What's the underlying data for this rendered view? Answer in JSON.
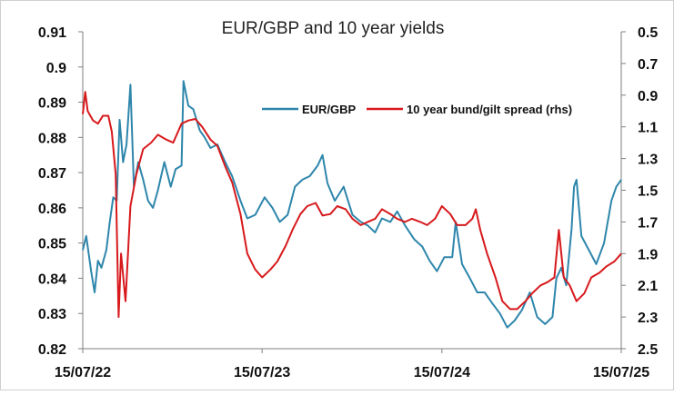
{
  "chart_data": {
    "type": "line",
    "title": "EUR/GBP and 10 year yields",
    "x_ticks": [
      "15/07/22",
      "15/07/23",
      "15/07/24",
      "15/07/25"
    ],
    "x_range": [
      "15/07/22",
      "15/07/25"
    ],
    "y_left": {
      "range": [
        0.82,
        0.91
      ],
      "ticks": [
        "0.91",
        "0.9",
        "0.89",
        "0.88",
        "0.87",
        "0.86",
        "0.85",
        "0.84",
        "0.83",
        "0.82"
      ]
    },
    "y_right": {
      "range": [
        0.5,
        2.5
      ],
      "inverted": true,
      "ticks": [
        "0.5",
        "0.7",
        "0.9",
        "1.1",
        "1.3",
        "1.5",
        "1.7",
        "1.9",
        "2.1",
        "2.3",
        "2.5"
      ]
    },
    "legend_placement": "top-center",
    "grid": false,
    "series": [
      {
        "name": "EUR/GBP",
        "axis": "left",
        "color": "#2E86AB",
        "points": [
          [
            "2022-07-15",
            0.848
          ],
          [
            "2022-07-22",
            0.852
          ],
          [
            "2022-08-01",
            0.842
          ],
          [
            "2022-08-08",
            0.836
          ],
          [
            "2022-08-15",
            0.845
          ],
          [
            "2022-08-22",
            0.843
          ],
          [
            "2022-09-01",
            0.848
          ],
          [
            "2022-09-08",
            0.856
          ],
          [
            "2022-09-15",
            0.863
          ],
          [
            "2022-09-22",
            0.862
          ],
          [
            "2022-09-28",
            0.885
          ],
          [
            "2022-10-05",
            0.873
          ],
          [
            "2022-10-12",
            0.878
          ],
          [
            "2022-10-20",
            0.895
          ],
          [
            "2022-10-27",
            0.866
          ],
          [
            "2022-11-05",
            0.873
          ],
          [
            "2022-11-15",
            0.868
          ],
          [
            "2022-11-25",
            0.862
          ],
          [
            "2022-12-05",
            0.86
          ],
          [
            "2022-12-15",
            0.865
          ],
          [
            "2022-12-28",
            0.873
          ],
          [
            "2023-01-10",
            0.866
          ],
          [
            "2023-01-20",
            0.871
          ],
          [
            "2023-02-01",
            0.872
          ],
          [
            "2023-02-05",
            0.896
          ],
          [
            "2023-02-15",
            0.889
          ],
          [
            "2023-02-25",
            0.888
          ],
          [
            "2023-03-10",
            0.882
          ],
          [
            "2023-03-20",
            0.88
          ],
          [
            "2023-04-01",
            0.877
          ],
          [
            "2023-04-15",
            0.878
          ],
          [
            "2023-05-01",
            0.873
          ],
          [
            "2023-05-15",
            0.869
          ],
          [
            "2023-06-01",
            0.862
          ],
          [
            "2023-06-15",
            0.857
          ],
          [
            "2023-07-01",
            0.858
          ],
          [
            "2023-07-20",
            0.863
          ],
          [
            "2023-08-05",
            0.86
          ],
          [
            "2023-08-20",
            0.856
          ],
          [
            "2023-09-05",
            0.858
          ],
          [
            "2023-09-20",
            0.866
          ],
          [
            "2023-10-05",
            0.868
          ],
          [
            "2023-10-20",
            0.869
          ],
          [
            "2023-11-05",
            0.872
          ],
          [
            "2023-11-15",
            0.875
          ],
          [
            "2023-11-25",
            0.867
          ],
          [
            "2023-12-10",
            0.862
          ],
          [
            "2023-12-28",
            0.866
          ],
          [
            "2024-01-15",
            0.858
          ],
          [
            "2024-02-01",
            0.856
          ],
          [
            "2024-02-15",
            0.855
          ],
          [
            "2024-03-01",
            0.853
          ],
          [
            "2024-03-15",
            0.857
          ],
          [
            "2024-04-01",
            0.856
          ],
          [
            "2024-04-15",
            0.859
          ],
          [
            "2024-05-01",
            0.855
          ],
          [
            "2024-05-20",
            0.851
          ],
          [
            "2024-06-05",
            0.849
          ],
          [
            "2024-06-20",
            0.845
          ],
          [
            "2024-07-05",
            0.842
          ],
          [
            "2024-07-20",
            0.846
          ],
          [
            "2024-08-05",
            0.846
          ],
          [
            "2024-08-12",
            0.856
          ],
          [
            "2024-08-25",
            0.844
          ],
          [
            "2024-09-10",
            0.84
          ],
          [
            "2024-09-25",
            0.836
          ],
          [
            "2024-10-10",
            0.836
          ],
          [
            "2024-10-25",
            0.833
          ],
          [
            "2024-11-10",
            0.83
          ],
          [
            "2024-11-25",
            0.826
          ],
          [
            "2024-12-10",
            0.828
          ],
          [
            "2024-12-25",
            0.831
          ],
          [
            "2025-01-10",
            0.836
          ],
          [
            "2025-01-25",
            0.829
          ],
          [
            "2025-02-10",
            0.827
          ],
          [
            "2025-02-25",
            0.829
          ],
          [
            "2025-03-05",
            0.84
          ],
          [
            "2025-03-15",
            0.843
          ],
          [
            "2025-03-25",
            0.838
          ],
          [
            "2025-04-05",
            0.854
          ],
          [
            "2025-04-10",
            0.866
          ],
          [
            "2025-04-15",
            0.868
          ],
          [
            "2025-04-25",
            0.852
          ],
          [
            "2025-05-10",
            0.848
          ],
          [
            "2025-05-25",
            0.844
          ],
          [
            "2025-06-10",
            0.85
          ],
          [
            "2025-06-25",
            0.862
          ],
          [
            "2025-07-05",
            0.866
          ],
          [
            "2025-07-15",
            0.868
          ]
        ]
      },
      {
        "name": "10 year bund/gilt spread (rhs)",
        "axis": "right",
        "color": "#D7191C",
        "points": [
          [
            "2022-07-15",
            1.02
          ],
          [
            "2022-07-20",
            0.88
          ],
          [
            "2022-07-25",
            1.0
          ],
          [
            "2022-08-05",
            1.06
          ],
          [
            "2022-08-15",
            1.08
          ],
          [
            "2022-08-25",
            1.03
          ],
          [
            "2022-09-05",
            1.03
          ],
          [
            "2022-09-12",
            1.13
          ],
          [
            "2022-09-20",
            1.4
          ],
          [
            "2022-09-26",
            2.3
          ],
          [
            "2022-10-01",
            1.9
          ],
          [
            "2022-10-10",
            2.2
          ],
          [
            "2022-10-20",
            1.6
          ],
          [
            "2022-11-01",
            1.4
          ],
          [
            "2022-11-15",
            1.24
          ],
          [
            "2022-12-01",
            1.2
          ],
          [
            "2022-12-15",
            1.15
          ],
          [
            "2023-01-01",
            1.18
          ],
          [
            "2023-01-15",
            1.2
          ],
          [
            "2023-02-01",
            1.08
          ],
          [
            "2023-02-15",
            1.06
          ],
          [
            "2023-03-01",
            1.05
          ],
          [
            "2023-03-15",
            1.1
          ],
          [
            "2023-04-01",
            1.18
          ],
          [
            "2023-04-15",
            1.22
          ],
          [
            "2023-05-01",
            1.35
          ],
          [
            "2023-05-15",
            1.45
          ],
          [
            "2023-06-01",
            1.65
          ],
          [
            "2023-06-15",
            1.9
          ],
          [
            "2023-07-01",
            2.0
          ],
          [
            "2023-07-15",
            2.05
          ],
          [
            "2023-08-01",
            2.0
          ],
          [
            "2023-08-15",
            1.95
          ],
          [
            "2023-09-01",
            1.85
          ],
          [
            "2023-09-15",
            1.75
          ],
          [
            "2023-10-01",
            1.65
          ],
          [
            "2023-10-15",
            1.6
          ],
          [
            "2023-11-01",
            1.58
          ],
          [
            "2023-11-15",
            1.66
          ],
          [
            "2023-12-01",
            1.65
          ],
          [
            "2023-12-15",
            1.6
          ],
          [
            "2024-01-01",
            1.62
          ],
          [
            "2024-01-15",
            1.68
          ],
          [
            "2024-02-01",
            1.72
          ],
          [
            "2024-02-15",
            1.7
          ],
          [
            "2024-03-01",
            1.68
          ],
          [
            "2024-03-15",
            1.62
          ],
          [
            "2024-04-01",
            1.65
          ],
          [
            "2024-04-15",
            1.68
          ],
          [
            "2024-05-01",
            1.7
          ],
          [
            "2024-05-15",
            1.68
          ],
          [
            "2024-06-01",
            1.7
          ],
          [
            "2024-06-15",
            1.72
          ],
          [
            "2024-07-01",
            1.68
          ],
          [
            "2024-07-15",
            1.6
          ],
          [
            "2024-08-01",
            1.65
          ],
          [
            "2024-08-15",
            1.72
          ],
          [
            "2024-09-01",
            1.72
          ],
          [
            "2024-09-15",
            1.68
          ],
          [
            "2024-09-22",
            1.62
          ],
          [
            "2024-10-01",
            1.75
          ],
          [
            "2024-10-15",
            1.9
          ],
          [
            "2024-11-01",
            2.05
          ],
          [
            "2024-11-15",
            2.2
          ],
          [
            "2024-12-01",
            2.25
          ],
          [
            "2024-12-15",
            2.25
          ],
          [
            "2025-01-01",
            2.2
          ],
          [
            "2025-01-15",
            2.15
          ],
          [
            "2025-02-01",
            2.1
          ],
          [
            "2025-02-15",
            2.08
          ],
          [
            "2025-03-01",
            2.05
          ],
          [
            "2025-03-10",
            1.75
          ],
          [
            "2025-03-20",
            2.05
          ],
          [
            "2025-04-01",
            2.1
          ],
          [
            "2025-04-15",
            2.2
          ],
          [
            "2025-05-01",
            2.15
          ],
          [
            "2025-05-15",
            2.05
          ],
          [
            "2025-06-01",
            2.02
          ],
          [
            "2025-06-15",
            1.98
          ],
          [
            "2025-07-01",
            1.95
          ],
          [
            "2025-07-15",
            1.9
          ]
        ]
      }
    ]
  }
}
